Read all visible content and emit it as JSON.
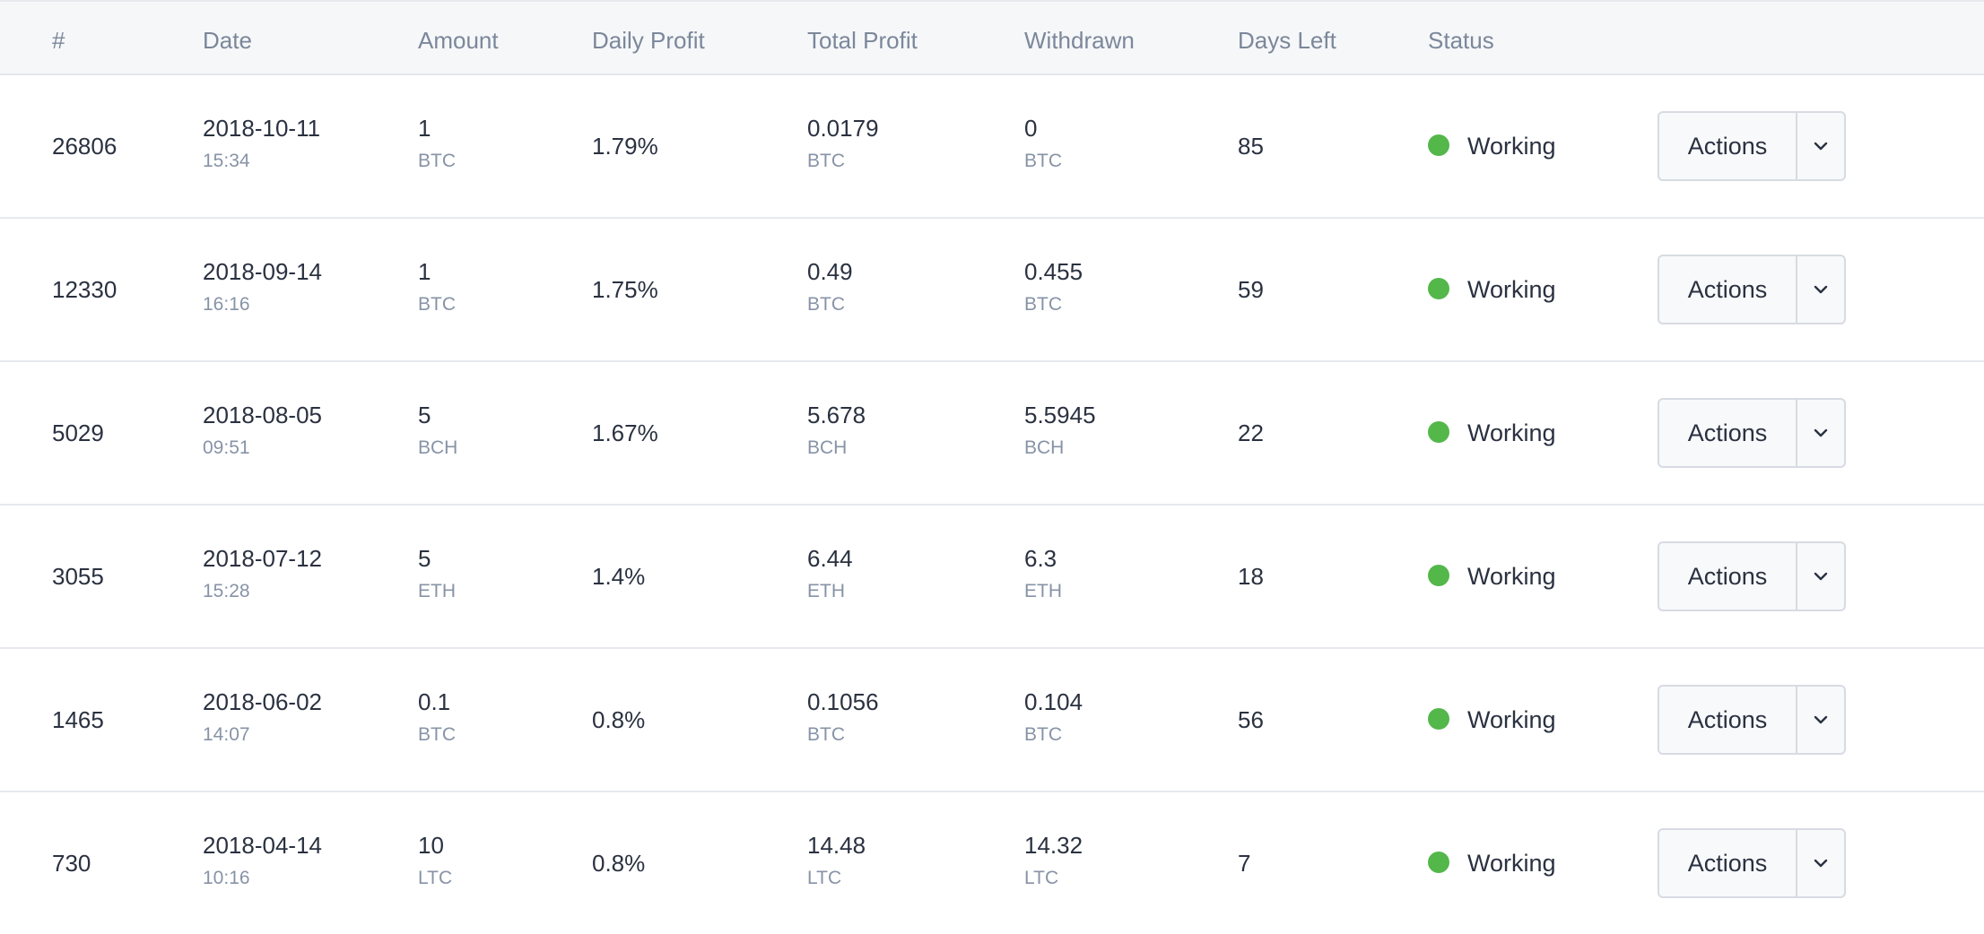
{
  "headers": {
    "id": "#",
    "date": "Date",
    "amount": "Amount",
    "daily_profit": "Daily Profit",
    "total_profit": "Total Profit",
    "withdrawn": "Withdrawn",
    "days_left": "Days Left",
    "status": "Status"
  },
  "status_color": "#53b74a",
  "rows": [
    {
      "id": "26806",
      "date": "2018-10-11",
      "time": "15:34",
      "amount": "1",
      "amount_unit": "BTC",
      "daily_profit": "1.79%",
      "total_profit": "0.0179",
      "total_unit": "BTC",
      "withdrawn": "0",
      "withdrawn_unit": "BTC",
      "days_left": "85",
      "status": "Working",
      "action_label": "Actions"
    },
    {
      "id": "12330",
      "date": "2018-09-14",
      "time": "16:16",
      "amount": "1",
      "amount_unit": "BTC",
      "daily_profit": "1.75%",
      "total_profit": "0.49",
      "total_unit": "BTC",
      "withdrawn": "0.455",
      "withdrawn_unit": "BTC",
      "days_left": "59",
      "status": "Working",
      "action_label": "Actions"
    },
    {
      "id": "5029",
      "date": "2018-08-05",
      "time": "09:51",
      "amount": "5",
      "amount_unit": "BCH",
      "daily_profit": "1.67%",
      "total_profit": "5.678",
      "total_unit": "BCH",
      "withdrawn": "5.5945",
      "withdrawn_unit": "BCH",
      "days_left": "22",
      "status": "Working",
      "action_label": "Actions"
    },
    {
      "id": "3055",
      "date": "2018-07-12",
      "time": "15:28",
      "amount": "5",
      "amount_unit": "ETH",
      "daily_profit": "1.4%",
      "total_profit": "6.44",
      "total_unit": "ETH",
      "withdrawn": "6.3",
      "withdrawn_unit": "ETH",
      "days_left": "18",
      "status": "Working",
      "action_label": "Actions"
    },
    {
      "id": "1465",
      "date": "2018-06-02",
      "time": "14:07",
      "amount": "0.1",
      "amount_unit": "BTC",
      "daily_profit": "0.8%",
      "total_profit": "0.1056",
      "total_unit": "BTC",
      "withdrawn": "0.104",
      "withdrawn_unit": "BTC",
      "days_left": "56",
      "status": "Working",
      "action_label": "Actions"
    },
    {
      "id": "730",
      "date": "2018-04-14",
      "time": "10:16",
      "amount": "10",
      "amount_unit": "LTC",
      "daily_profit": "0.8%",
      "total_profit": "14.48",
      "total_unit": "LTC",
      "withdrawn": "14.32",
      "withdrawn_unit": "LTC",
      "days_left": "7",
      "status": "Working",
      "action_label": "Actions"
    }
  ],
  "icons": {
    "caret": "chevron-down-icon",
    "status": "status-dot-icon"
  }
}
